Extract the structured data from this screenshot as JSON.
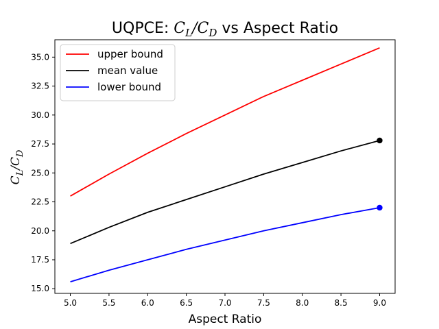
{
  "chart_data": {
    "type": "line",
    "title": {
      "prefix": "UQPCE: ",
      "num": "C",
      "num_sub": "L",
      "sep": "/",
      "den": "C",
      "den_sub": "D",
      "suffix": " vs Aspect Ratio"
    },
    "xlabel": "Aspect Ratio",
    "ylabel": {
      "num": "C",
      "num_sub": "L",
      "sep": "/",
      "den": "C",
      "den_sub": "D"
    },
    "xlim": [
      4.8,
      9.2
    ],
    "ylim": [
      14.6,
      36.5
    ],
    "xticks": [
      5.0,
      5.5,
      6.0,
      6.5,
      7.0,
      7.5,
      8.0,
      8.5,
      9.0
    ],
    "xtick_labels": [
      "5.0",
      "5.5",
      "6.0",
      "6.5",
      "7.0",
      "7.5",
      "8.0",
      "8.5",
      "9.0"
    ],
    "yticks": [
      15.0,
      17.5,
      20.0,
      22.5,
      25.0,
      27.5,
      30.0,
      32.5,
      35.0
    ],
    "ytick_labels": [
      "15.0",
      "17.5",
      "20.0",
      "22.5",
      "25.0",
      "27.5",
      "30.0",
      "32.5",
      "35.0"
    ],
    "legend_position": "top-left",
    "grid": false,
    "x": [
      5.0,
      5.5,
      6.0,
      6.5,
      7.0,
      7.5,
      8.0,
      8.5,
      9.0
    ],
    "series": [
      {
        "name": "upper bound",
        "color": "#ff0000",
        "values": [
          23.0,
          24.9,
          26.7,
          28.4,
          30.0,
          31.6,
          33.0,
          34.4,
          35.8
        ],
        "marker_at_end": false
      },
      {
        "name": "mean value",
        "color": "#000000",
        "values": [
          18.9,
          20.3,
          21.6,
          22.7,
          23.8,
          24.9,
          25.9,
          26.9,
          27.8
        ],
        "marker_at_end": true
      },
      {
        "name": "lower bound",
        "color": "#0000ff",
        "values": [
          15.6,
          16.6,
          17.5,
          18.4,
          19.2,
          20.0,
          20.7,
          21.4,
          22.0
        ],
        "marker_at_end": true
      }
    ]
  }
}
